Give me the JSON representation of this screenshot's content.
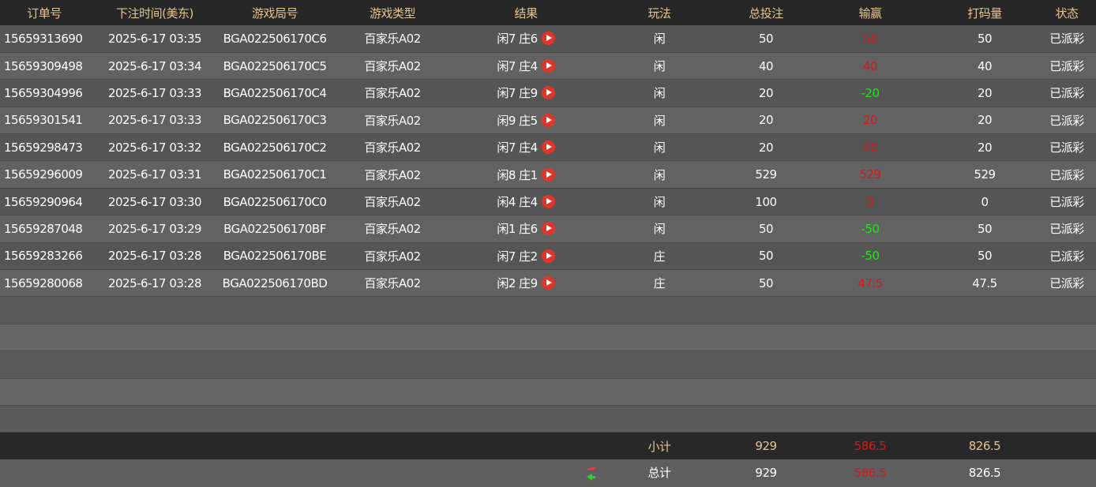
{
  "headers": [
    "订单号",
    "下注时间(美东)",
    "游戏局号",
    "游戏类型",
    "结果",
    "玩法",
    "总投注",
    "输赢",
    "打码量",
    "状态"
  ],
  "rows": [
    {
      "order": "15659313690",
      "time": "2025-6-17 03:35",
      "round": "BGA022506170C6",
      "game": "百家乐A02",
      "result": "闲7 庄6",
      "play": "闲",
      "bet": "50",
      "win": "50",
      "win_color": "red",
      "code": "50",
      "status": "已派彩"
    },
    {
      "order": "15659309498",
      "time": "2025-6-17 03:34",
      "round": "BGA022506170C5",
      "game": "百家乐A02",
      "result": "闲7 庄4",
      "play": "闲",
      "bet": "40",
      "win": "40",
      "win_color": "red",
      "code": "40",
      "status": "已派彩"
    },
    {
      "order": "15659304996",
      "time": "2025-6-17 03:33",
      "round": "BGA022506170C4",
      "game": "百家乐A02",
      "result": "闲7 庄9",
      "play": "闲",
      "bet": "20",
      "win": "-20",
      "win_color": "green",
      "code": "20",
      "status": "已派彩"
    },
    {
      "order": "15659301541",
      "time": "2025-6-17 03:33",
      "round": "BGA022506170C3",
      "game": "百家乐A02",
      "result": "闲9 庄5",
      "play": "闲",
      "bet": "20",
      "win": "20",
      "win_color": "red",
      "code": "20",
      "status": "已派彩"
    },
    {
      "order": "15659298473",
      "time": "2025-6-17 03:32",
      "round": "BGA022506170C2",
      "game": "百家乐A02",
      "result": "闲7 庄4",
      "play": "闲",
      "bet": "20",
      "win": "20",
      "win_color": "red",
      "code": "20",
      "status": "已派彩"
    },
    {
      "order": "15659296009",
      "time": "2025-6-17 03:31",
      "round": "BGA022506170C1",
      "game": "百家乐A02",
      "result": "闲8 庄1",
      "play": "闲",
      "bet": "529",
      "win": "529",
      "win_color": "red",
      "code": "529",
      "status": "已派彩"
    },
    {
      "order": "15659290964",
      "time": "2025-6-17 03:30",
      "round": "BGA022506170C0",
      "game": "百家乐A02",
      "result": "闲4 庄4",
      "play": "闲",
      "bet": "100",
      "win": "0",
      "win_color": "red",
      "code": "0",
      "status": "已派彩"
    },
    {
      "order": "15659287048",
      "time": "2025-6-17 03:29",
      "round": "BGA022506170BF",
      "game": "百家乐A02",
      "result": "闲1 庄6",
      "play": "闲",
      "bet": "50",
      "win": "-50",
      "win_color": "green",
      "code": "50",
      "status": "已派彩"
    },
    {
      "order": "15659283266",
      "time": "2025-6-17 03:28",
      "round": "BGA022506170BE",
      "game": "百家乐A02",
      "result": "闲7 庄2",
      "play": "庄",
      "bet": "50",
      "win": "-50",
      "win_color": "green",
      "code": "50",
      "status": "已派彩"
    },
    {
      "order": "15659280068",
      "time": "2025-6-17 03:28",
      "round": "BGA022506170BD",
      "game": "百家乐A02",
      "result": "闲2 庄9",
      "play": "庄",
      "bet": "50",
      "win": "47.5",
      "win_color": "red",
      "code": "47.5",
      "status": "已派彩"
    }
  ],
  "subtotal": {
    "label": "小计",
    "bet": "929",
    "win": "586.5",
    "code": "826.5"
  },
  "total": {
    "label": "总计",
    "bet": "929",
    "win": "586.5",
    "code": "826.5",
    "icon": "refresh-icon"
  },
  "colors": {
    "header_bg": "#272727",
    "header_text": "#e5c48f",
    "loss": "#e0141b",
    "gain": "#22e322",
    "play_icon": "#e2352a"
  }
}
